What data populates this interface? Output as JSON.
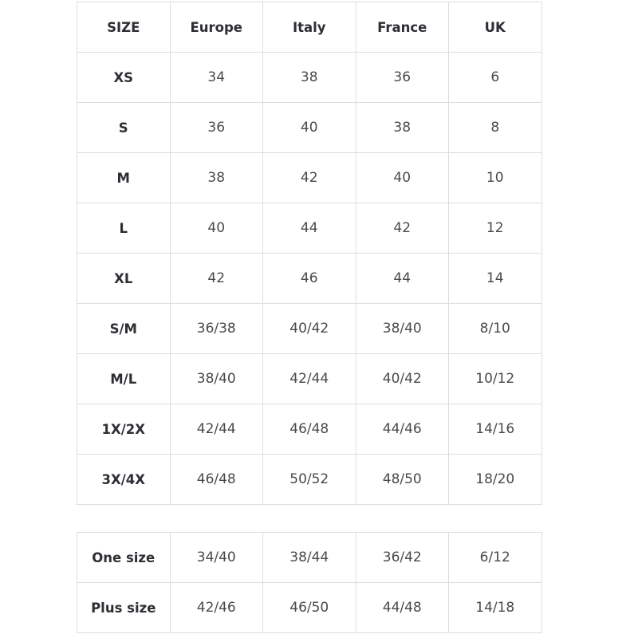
{
  "size_table": {
    "header": [
      "SIZE",
      "Europe",
      "Italy",
      "France",
      "UK"
    ],
    "rows": [
      [
        "XS",
        "34",
        "38",
        "36",
        "6"
      ],
      [
        "S",
        "36",
        "40",
        "38",
        "8"
      ],
      [
        "M",
        "38",
        "42",
        "40",
        "10"
      ],
      [
        "L",
        "40",
        "44",
        "42",
        "12"
      ],
      [
        "XL",
        "42",
        "46",
        "44",
        "14"
      ],
      [
        "S/M",
        "36/38",
        "40/42",
        "38/40",
        "8/10"
      ],
      [
        "M/L",
        "38/40",
        "42/44",
        "40/42",
        "10/12"
      ],
      [
        "1X/2X",
        "42/44",
        "46/48",
        "44/46",
        "14/16"
      ],
      [
        "3X/4X",
        "46/48",
        "50/52",
        "48/50",
        "18/20"
      ]
    ]
  },
  "special_table": {
    "rows": [
      [
        "One size",
        "34/40",
        "38/44",
        "36/42",
        "6/12"
      ],
      [
        "Plus size",
        "42/46",
        "46/50",
        "44/48",
        "14/18"
      ]
    ]
  }
}
